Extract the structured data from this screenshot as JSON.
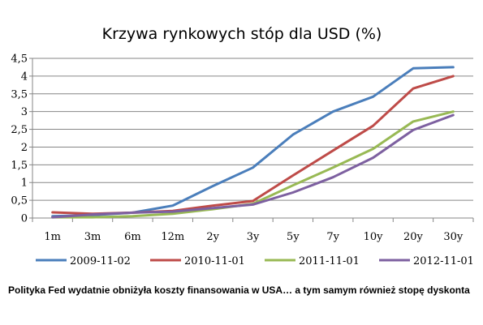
{
  "chart_data": {
    "type": "line",
    "title": "Krzywa rynkowych stóp dla USD (%)",
    "xlabel": "",
    "ylabel": "",
    "categories": [
      "1m",
      "3m",
      "6m",
      "12m",
      "2y",
      "3y",
      "5y",
      "7y",
      "10y",
      "20y",
      "30y"
    ],
    "ylim": [
      0,
      4.5
    ],
    "yticks": [
      "0",
      "0,5",
      "1",
      "1,5",
      "2",
      "2,5",
      "3",
      "3,5",
      "4",
      "4,5"
    ],
    "grid": true,
    "legend": "bottom",
    "series": [
      {
        "name": "2009-11-02",
        "color": "#4a7ebb",
        "values": [
          0.05,
          0.08,
          0.15,
          0.35,
          0.9,
          1.42,
          2.35,
          3.0,
          3.42,
          4.22,
          4.25
        ]
      },
      {
        "name": "2010-11-01",
        "color": "#be4b48",
        "values": [
          0.16,
          0.12,
          0.15,
          0.2,
          0.35,
          0.48,
          1.2,
          1.9,
          2.6,
          3.65,
          4.0
        ]
      },
      {
        "name": "2011-11-01",
        "color": "#98b954",
        "values": [
          0.02,
          0.02,
          0.05,
          0.12,
          0.25,
          0.4,
          0.92,
          1.42,
          1.95,
          2.72,
          3.0
        ]
      },
      {
        "name": "2012-11-01",
        "color": "#7d60a0",
        "values": [
          0.02,
          0.1,
          0.15,
          0.18,
          0.28,
          0.38,
          0.72,
          1.15,
          1.7,
          2.48,
          2.9
        ]
      }
    ]
  },
  "caption": "Polityka Fed wydatnie obniżyła koszty finansowania w USA… a tym samym również stopę dyskonta"
}
